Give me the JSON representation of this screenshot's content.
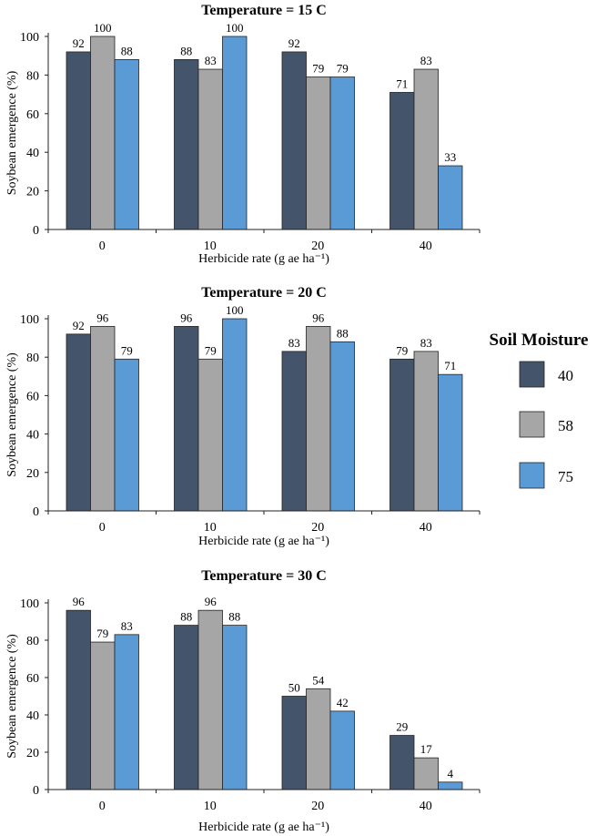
{
  "chart_data": [
    {
      "type": "bar",
      "title": "Temperature = 15 C",
      "xlabel": "Herbicide rate (g ae ha⁻¹)",
      "ylabel": "Soybean emergence (%)",
      "categories": [
        "0",
        "10",
        "20",
        "40"
      ],
      "ylim": [
        0,
        100
      ],
      "yticks": [
        0,
        20,
        40,
        60,
        80,
        100
      ],
      "series": [
        {
          "name": "40",
          "values": [
            92,
            88,
            92,
            71
          ]
        },
        {
          "name": "58",
          "values": [
            100,
            83,
            79,
            83
          ]
        },
        {
          "name": "75",
          "values": [
            88,
            100,
            79,
            33
          ]
        }
      ]
    },
    {
      "type": "bar",
      "title": "Temperature = 20 C",
      "xlabel": "Herbicide rate (g ae ha⁻¹)",
      "ylabel": "Soybean emergence (%)",
      "categories": [
        "0",
        "10",
        "20",
        "40"
      ],
      "ylim": [
        0,
        100
      ],
      "yticks": [
        0,
        20,
        40,
        60,
        80,
        100
      ],
      "series": [
        {
          "name": "40",
          "values": [
            92,
            96,
            83,
            79
          ]
        },
        {
          "name": "58",
          "values": [
            96,
            79,
            96,
            83
          ]
        },
        {
          "name": "75",
          "values": [
            79,
            100,
            88,
            71
          ]
        }
      ]
    },
    {
      "type": "bar",
      "title": "Temperature = 30 C",
      "xlabel": "Herbicide rate (g ae ha⁻¹)",
      "ylabel": "Soybean emergence (%)",
      "categories": [
        "0",
        "10",
        "20",
        "40"
      ],
      "ylim": [
        0,
        100
      ],
      "yticks": [
        0,
        20,
        40,
        60,
        80,
        100
      ],
      "series": [
        {
          "name": "40",
          "values": [
            96,
            88,
            50,
            29
          ]
        },
        {
          "name": "58",
          "values": [
            79,
            96,
            54,
            17
          ]
        },
        {
          "name": "75",
          "values": [
            83,
            88,
            42,
            4
          ]
        }
      ]
    }
  ],
  "legend": {
    "title": "Soil Moisture",
    "placement": "right",
    "items": [
      "40",
      "58",
      "75"
    ]
  },
  "colors": {
    "40": "#44546a",
    "58": "#a6a6a6",
    "75": "#5b9bd5"
  }
}
